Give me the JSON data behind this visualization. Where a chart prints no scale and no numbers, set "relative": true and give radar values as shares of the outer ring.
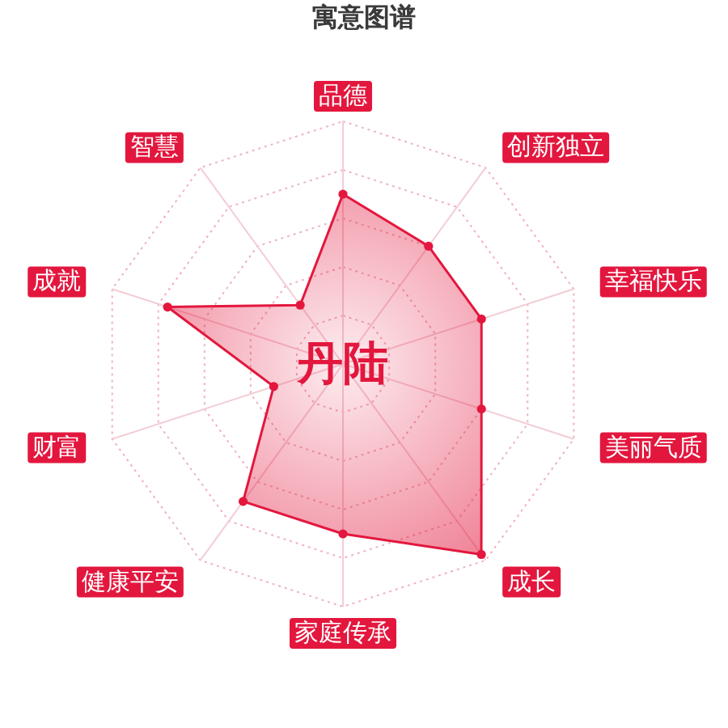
{
  "chart_data": {
    "type": "radar",
    "title": "寓意图谱",
    "categories": [
      "品德",
      "创新独立",
      "幸福快乐",
      "美丽气质",
      "成长",
      "家庭传承",
      "健康平安",
      "财富",
      "成就",
      "智慧"
    ],
    "relative": true,
    "series": [
      {
        "color": "#e3173e",
        "values": [
          0.7,
          0.6,
          0.6,
          0.6,
          0.97,
          0.7,
          0.7,
          0.3,
          0.76,
          0.3
        ]
      }
    ],
    "annotations": [
      "丹陆"
    ],
    "grid": true,
    "marker": "circle"
  }
}
